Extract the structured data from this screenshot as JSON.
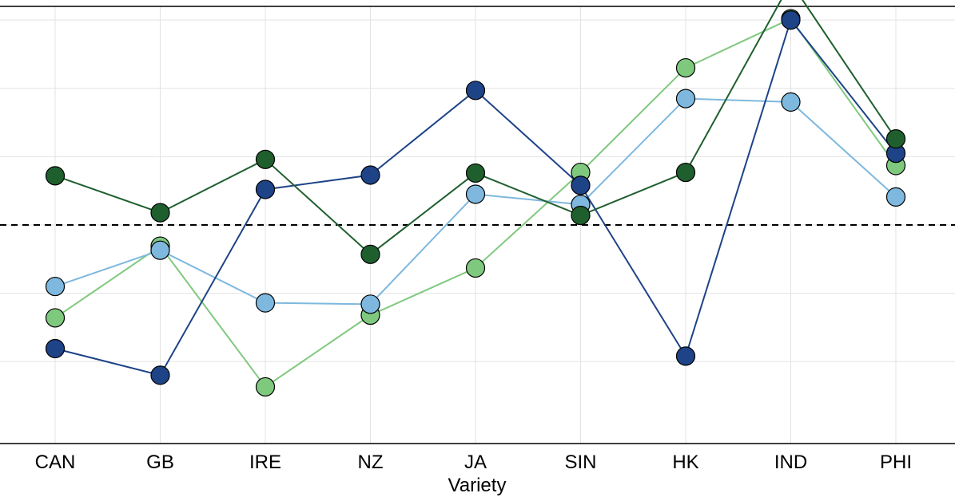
{
  "chart_data": {
    "type": "line",
    "title": "",
    "xlabel": "Variety",
    "ylabel": "",
    "categories": [
      "CAN",
      "GB",
      "IRE",
      "NZ",
      "JA",
      "SIN",
      "HK",
      "IND",
      "PHI"
    ],
    "ylim": [
      -3.2,
      3.2
    ],
    "yticks": [
      -2,
      -1,
      0,
      1,
      2,
      3
    ],
    "reference_line": 0,
    "grid": true,
    "legend": "none",
    "series": [
      {
        "color": "#7fc97f",
        "values": [
          -1.36,
          -0.31,
          -2.37,
          -1.32,
          -0.63,
          0.77,
          2.3,
          3.02,
          0.87
        ]
      },
      {
        "color": "#7eb8de",
        "values": [
          -0.9,
          -0.37,
          -1.14,
          -1.16,
          0.45,
          0.3,
          1.85,
          1.8,
          0.41
        ]
      },
      {
        "color": "#1e4387",
        "values": [
          -1.81,
          -2.2,
          0.52,
          0.73,
          1.97,
          0.58,
          -1.92,
          3.0,
          1.05
        ]
      },
      {
        "color": "#1f5f2e",
        "values": [
          0.72,
          0.18,
          0.96,
          -0.43,
          0.76,
          0.14,
          0.77,
          3.55,
          1.26
        ]
      }
    ]
  }
}
